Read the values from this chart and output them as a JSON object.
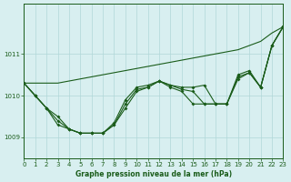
{
  "background_color": "#d8eff0",
  "grid_color": "#b0d8d8",
  "line_color": "#1a5c1a",
  "xlabel": "Graphe pression niveau de la mer (hPa)",
  "ylim": [
    1008.5,
    1012.2
  ],
  "xlim": [
    0,
    23
  ],
  "yticks": [
    1009,
    1010,
    1011
  ],
  "xticks": [
    0,
    1,
    2,
    3,
    4,
    5,
    6,
    7,
    8,
    9,
    10,
    11,
    12,
    13,
    14,
    15,
    16,
    17,
    18,
    19,
    20,
    21,
    22,
    23
  ],
  "series_straight": [
    1010.3,
    1010.3,
    1010.3,
    1010.3,
    1010.35,
    1010.4,
    1010.45,
    1010.5,
    1010.55,
    1010.6,
    1010.65,
    1010.7,
    1010.75,
    1010.8,
    1010.85,
    1010.9,
    1010.95,
    1011.0,
    1011.05,
    1011.1,
    1011.2,
    1011.3,
    1011.5,
    1011.65
  ],
  "series_wavy1": [
    1010.3,
    1010.0,
    1009.7,
    1009.3,
    1009.2,
    1009.1,
    1009.1,
    1009.1,
    1009.3,
    1009.8,
    1010.15,
    1010.2,
    1010.35,
    1010.25,
    1010.2,
    1010.2,
    1010.25,
    1009.8,
    1009.8,
    1010.5,
    1010.6,
    1010.2,
    1011.2,
    1011.65
  ],
  "series_wavy2": [
    1010.3,
    1010.0,
    1009.7,
    1009.5,
    1009.2,
    1009.1,
    1009.1,
    1009.1,
    1009.3,
    1009.7,
    1010.1,
    1010.2,
    1010.35,
    1010.25,
    1010.15,
    1010.1,
    1009.8,
    1009.8,
    1009.8,
    1010.45,
    1010.55,
    1010.2,
    1011.2,
    1011.65
  ],
  "series_wavy3": [
    1010.3,
    1010.0,
    1009.7,
    1009.4,
    1009.2,
    1009.1,
    1009.1,
    1009.1,
    1009.35,
    1009.9,
    1010.2,
    1010.25,
    1010.35,
    1010.2,
    1010.1,
    1009.8,
    1009.8,
    1009.8,
    1009.8,
    1010.4,
    1010.55,
    1010.2,
    1011.2,
    1011.65
  ]
}
